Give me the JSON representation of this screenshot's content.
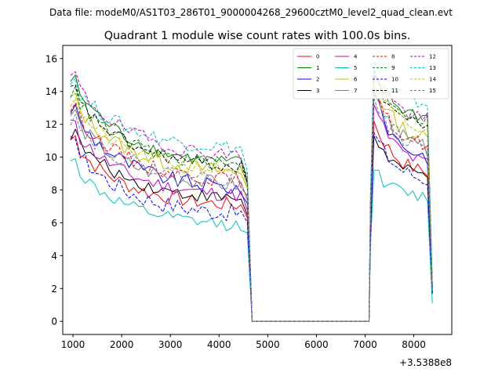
{
  "suptitle": "Data file: modeM0/AS1T03_286T01_9000004268_29600cztM0_level2_quad_clean.evt",
  "chart_data": {
    "type": "line",
    "title": "Quadrant 1 module wise count rates with 100.0s bins.",
    "xlabel": "",
    "ylabel": "",
    "offset_label": "+3.5388e8",
    "xlim": [
      790,
      8780
    ],
    "ylim": [
      -0.8,
      16.8
    ],
    "xticks": [
      1000,
      2000,
      3000,
      4000,
      5000,
      6000,
      7000,
      8000
    ],
    "xtick_labels": [
      "1000",
      "2000",
      "3000",
      "4000",
      "5000",
      "6000",
      "7000",
      "8000"
    ],
    "yticks": [
      0,
      2,
      4,
      6,
      8,
      10,
      12,
      14,
      16
    ],
    "ytick_labels": [
      "0",
      "2",
      "4",
      "6",
      "8",
      "10",
      "12",
      "14",
      "16"
    ],
    "grid": false,
    "legend_position": "top-right",
    "legend_columns": 4,
    "time_segments": {
      "on1": {
        "x_start": 950,
        "x_end": 4480,
        "step": 100
      },
      "off": {
        "x_start": 4680,
        "x_end": 7080,
        "value": 0
      },
      "on2": {
        "x_start": 7180,
        "x_end": 8280,
        "step": 100
      },
      "final_x": 8380
    },
    "series": [
      {
        "name": "0",
        "color": "#ff0000",
        "dash": "solid",
        "start1": 11.0,
        "end1": 6.9,
        "rise": 7.0,
        "peak2": 12.2,
        "end2": 8.8,
        "last": 1.9,
        "noise": 0.45
      },
      {
        "name": "1",
        "color": "#008000",
        "dash": "solid",
        "start1": 14.7,
        "end1": 9.4,
        "rise": 9.5,
        "peak2": 15.0,
        "end2": 12.2,
        "last": 2.2,
        "noise": 0.45
      },
      {
        "name": "2",
        "color": "#0000ff",
        "dash": "solid",
        "start1": 12.9,
        "end1": 7.9,
        "rise": 8.0,
        "peak2": 13.8,
        "end2": 9.7,
        "last": 1.8,
        "noise": 0.5
      },
      {
        "name": "3",
        "color": "#000000",
        "dash": "solid",
        "start1": 11.4,
        "end1": 7.3,
        "rise": 7.2,
        "peak2": 11.3,
        "end2": 8.6,
        "last": 1.7,
        "noise": 0.4
      },
      {
        "name": "4",
        "color": "#bf00bf",
        "dash": "solid",
        "start1": 11.9,
        "end1": 7.5,
        "rise": 7.5,
        "peak2": 13.2,
        "end2": 9.3,
        "last": 1.8,
        "noise": 0.45
      },
      {
        "name": "5",
        "color": "#00bfbf",
        "dash": "solid",
        "start1": 9.6,
        "end1": 5.7,
        "rise": 6.0,
        "peak2": 9.2,
        "end2": 7.4,
        "last": 1.1,
        "noise": 0.4
      },
      {
        "name": "6",
        "color": "#bfbf00",
        "dash": "solid",
        "start1": 13.6,
        "end1": 8.9,
        "rise": 9.0,
        "peak2": 14.6,
        "end2": 10.8,
        "last": 2.0,
        "noise": 0.5
      },
      {
        "name": "7",
        "color": "#808080",
        "dash": "solid",
        "start1": 12.6,
        "end1": 8.1,
        "rise": 8.2,
        "peak2": 14.0,
        "end2": 10.2,
        "last": 1.9,
        "noise": 0.5
      },
      {
        "name": "8",
        "color": "#ff0000",
        "dash": "dashed",
        "start1": 13.0,
        "end1": 8.4,
        "rise": 8.5,
        "peak2": 13.9,
        "end2": 10.5,
        "last": 2.0,
        "noise": 0.45
      },
      {
        "name": "9",
        "color": "#008000",
        "dash": "dashed",
        "start1": 14.0,
        "end1": 9.3,
        "rise": 9.4,
        "peak2": 15.3,
        "end2": 12.0,
        "last": 2.2,
        "noise": 0.45
      },
      {
        "name": "10",
        "color": "#0000ff",
        "dash": "dashed",
        "start1": 10.8,
        "end1": 6.4,
        "rise": 6.7,
        "peak2": 11.5,
        "end2": 8.4,
        "last": 1.6,
        "noise": 0.55
      },
      {
        "name": "11",
        "color": "#000000",
        "dash": "dashed",
        "start1": 14.1,
        "end1": 9.2,
        "rise": 9.3,
        "peak2": 14.9,
        "end2": 11.6,
        "last": 2.1,
        "noise": 0.4
      },
      {
        "name": "12",
        "color": "#bf00bf",
        "dash": "dashed",
        "start1": 14.9,
        "end1": 9.9,
        "rise": 9.8,
        "peak2": 15.4,
        "end2": 12.0,
        "last": 2.2,
        "noise": 0.45
      },
      {
        "name": "13",
        "color": "#00bfbf",
        "dash": "dashed",
        "start1": 14.5,
        "end1": 10.4,
        "rise": 10.2,
        "peak2": 15.8,
        "end2": 13.0,
        "last": 2.3,
        "noise": 0.45
      },
      {
        "name": "14",
        "color": "#bfbf00",
        "dash": "dashed",
        "start1": 13.3,
        "end1": 9.0,
        "rise": 9.0,
        "peak2": 14.7,
        "end2": 11.2,
        "last": 2.0,
        "noise": 0.45
      },
      {
        "name": "15",
        "color": "#6a7fa8",
        "dash": "dashed",
        "start1": 12.3,
        "end1": 8.5,
        "rise": 8.4,
        "peak2": 13.6,
        "end2": 10.3,
        "last": 1.9,
        "noise": 0.45
      }
    ]
  }
}
